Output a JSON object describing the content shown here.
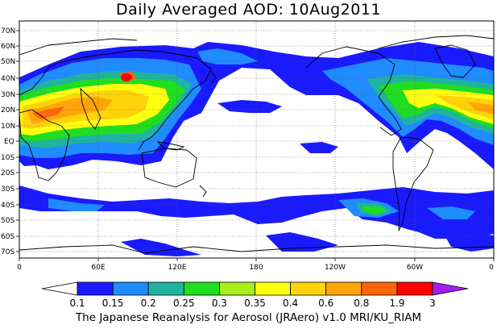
{
  "title": "Daily Averaged AOD: 10Aug2011",
  "credit": "The Japanese Reanalysis for Aerosol (JRAero) v1.0 MRI/KU_RIAM",
  "lat_labels": [
    "70N",
    "60N",
    "50N",
    "40N",
    "30N",
    "20N",
    "10N",
    "EQ",
    "10S",
    "20S",
    "30S",
    "40S",
    "50S",
    "60S",
    "70S"
  ],
  "lon_labels": [
    "0",
    "60E",
    "120E",
    "180",
    "120W",
    "60W",
    "0"
  ],
  "colorbar": {
    "labels": [
      "0.1",
      "0.15",
      "0.2",
      "0.25",
      "0.3",
      "0.35",
      "0.4",
      "0.6",
      "0.8",
      "1.9",
      "3"
    ],
    "colors": [
      "#ffffff",
      "#1a1aff",
      "#1f8cff",
      "#1eb4a0",
      "#20dd20",
      "#a8ee1a",
      "#ffff10",
      "#ffd20a",
      "#ffa50a",
      "#ff640a",
      "#ff0000",
      "#a020f0"
    ]
  }
}
